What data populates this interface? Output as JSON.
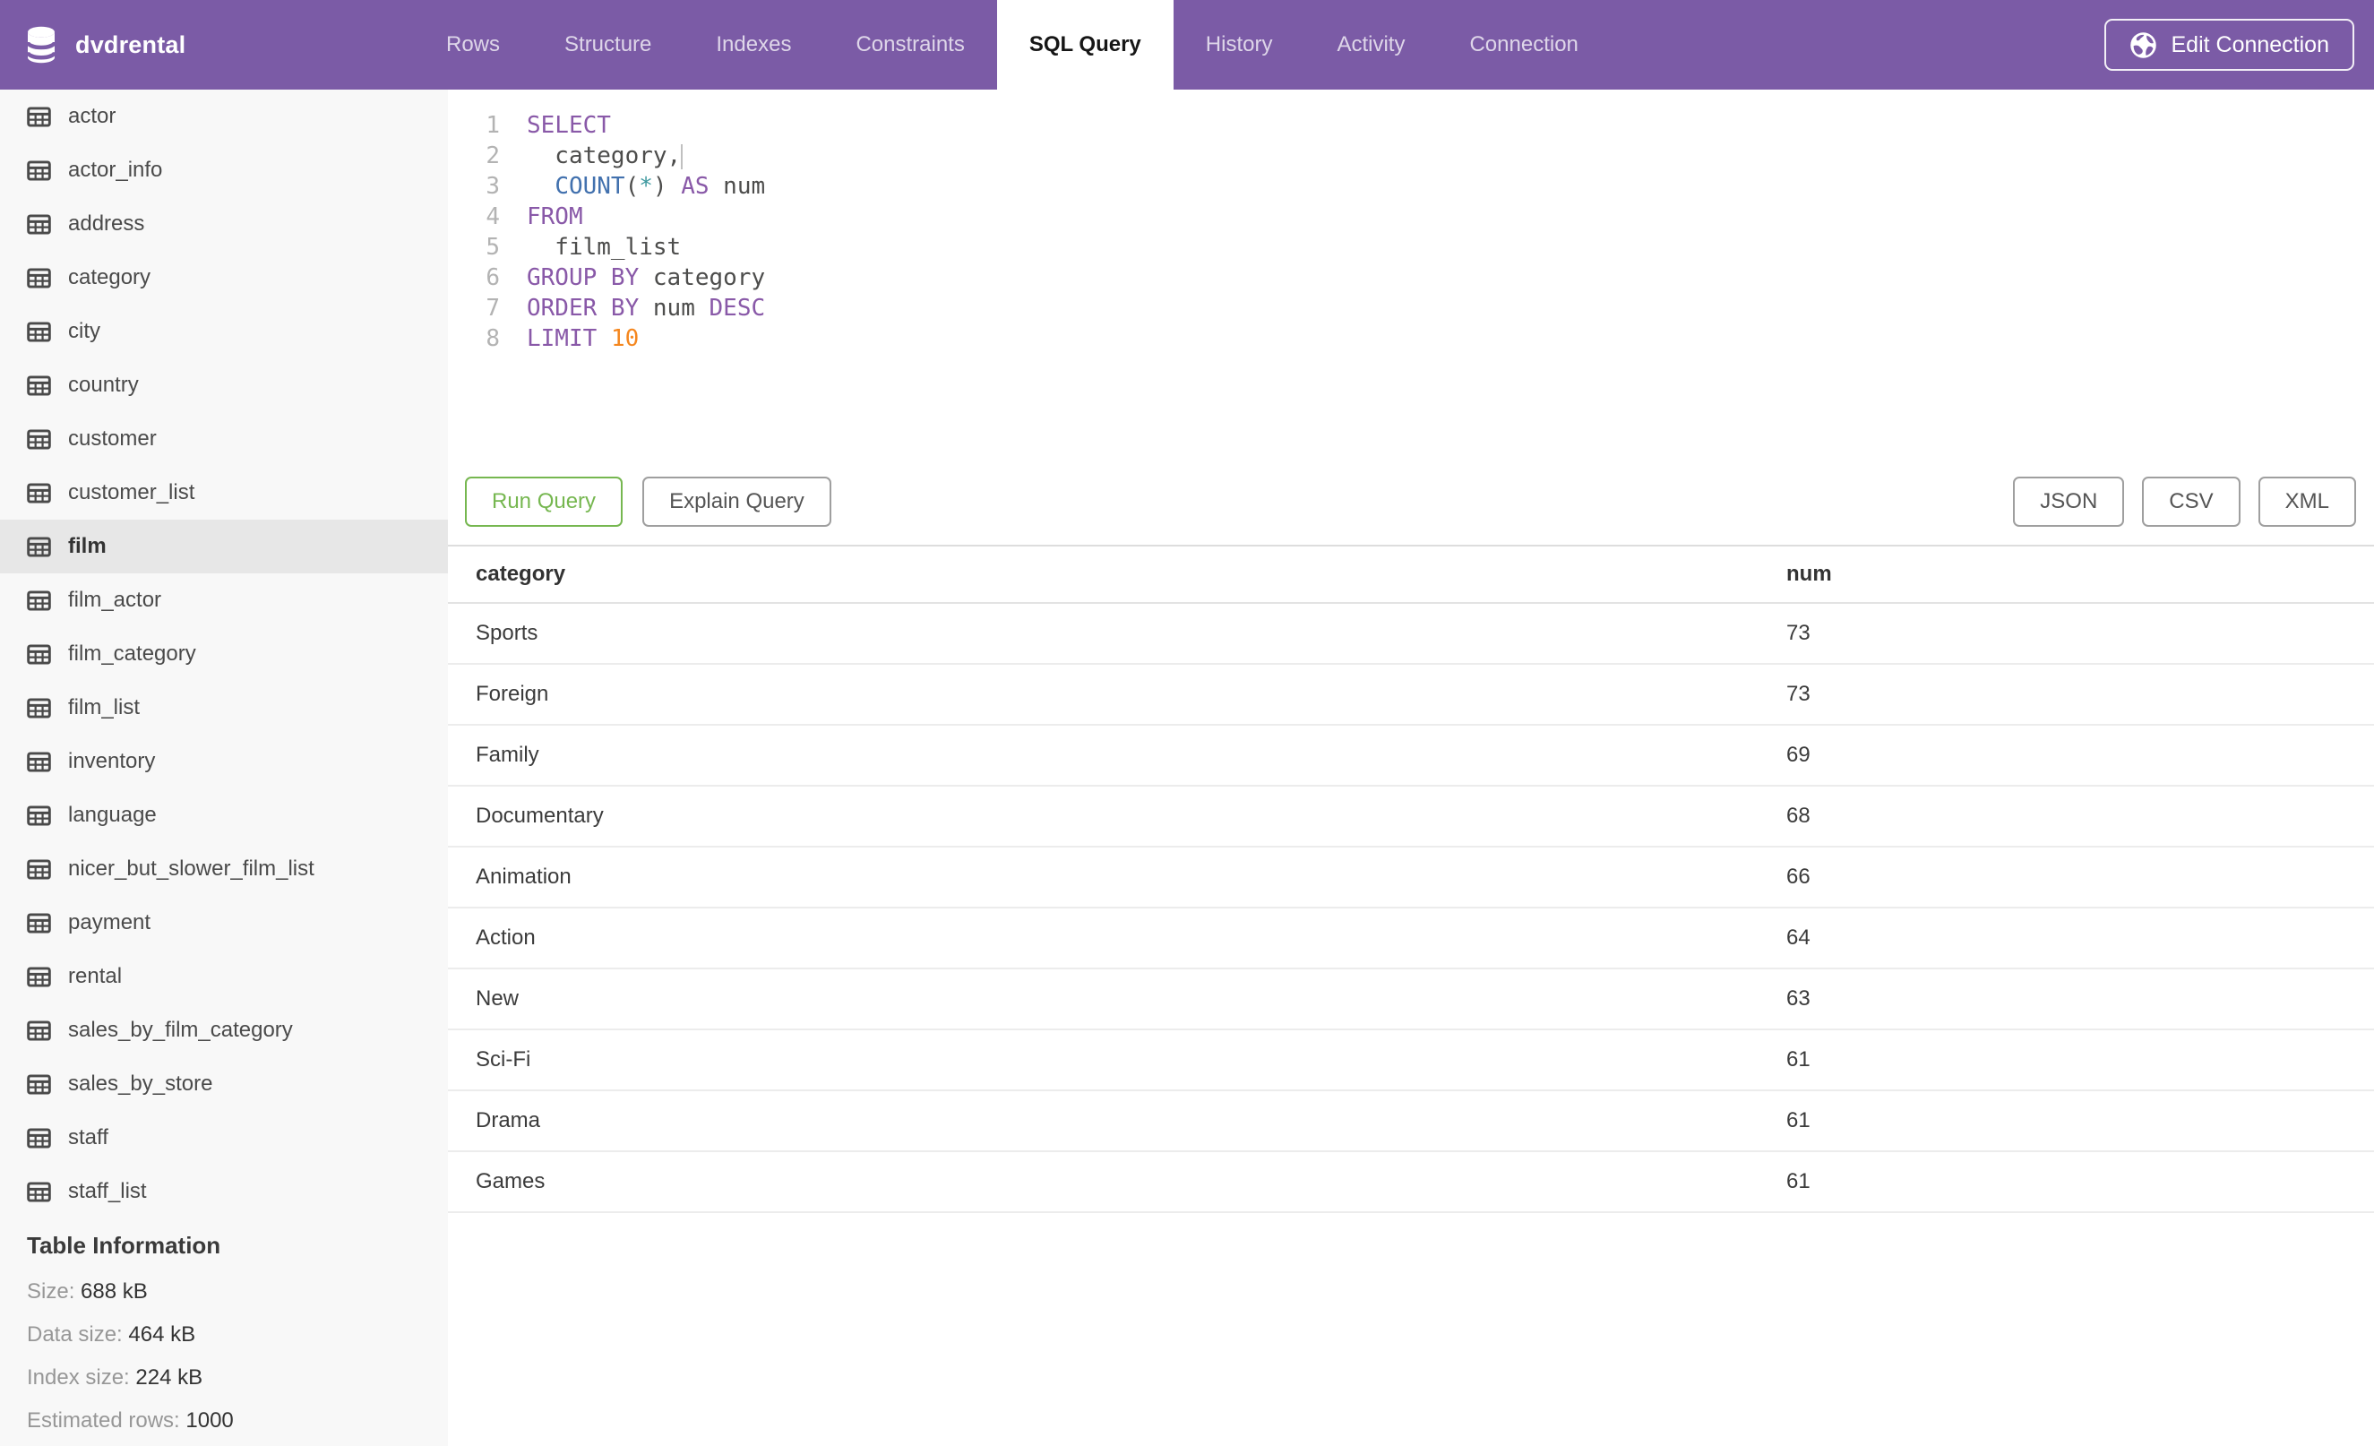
{
  "header": {
    "db_name": "dvdrental",
    "tabs": [
      {
        "label": "Rows",
        "active": false
      },
      {
        "label": "Structure",
        "active": false
      },
      {
        "label": "Indexes",
        "active": false
      },
      {
        "label": "Constraints",
        "active": false
      },
      {
        "label": "SQL Query",
        "active": true
      },
      {
        "label": "History",
        "active": false
      },
      {
        "label": "Activity",
        "active": false
      },
      {
        "label": "Connection",
        "active": false
      }
    ],
    "edit_connection_label": "Edit Connection"
  },
  "sidebar": {
    "tables": [
      "actor",
      "actor_info",
      "address",
      "category",
      "city",
      "country",
      "customer",
      "customer_list",
      "film",
      "film_actor",
      "film_category",
      "film_list",
      "inventory",
      "language",
      "nicer_but_slower_film_list",
      "payment",
      "rental",
      "sales_by_film_category",
      "sales_by_store",
      "staff",
      "staff_list"
    ],
    "selected_table": "film",
    "table_information": {
      "heading": "Table Information",
      "rows": [
        {
          "label": "Size:",
          "value": "688 kB"
        },
        {
          "label": "Data size:",
          "value": "464 kB"
        },
        {
          "label": "Index size:",
          "value": "224 kB"
        },
        {
          "label": "Estimated rows:",
          "value": "1000"
        }
      ]
    }
  },
  "editor": {
    "lines": [
      {
        "number": 1,
        "tokens": [
          [
            "kw",
            "SELECT"
          ]
        ]
      },
      {
        "number": 2,
        "tokens": [
          [
            "txt",
            "  category,"
          ],
          [
            "cursor",
            ""
          ]
        ]
      },
      {
        "number": 3,
        "tokens": [
          [
            "txt",
            "  "
          ],
          [
            "fn",
            "COUNT"
          ],
          [
            "txt",
            "("
          ],
          [
            "op",
            "*"
          ],
          [
            "txt",
            ") "
          ],
          [
            "kw",
            "AS"
          ],
          [
            "txt",
            " num"
          ]
        ]
      },
      {
        "number": 4,
        "tokens": [
          [
            "kw",
            "FROM"
          ]
        ]
      },
      {
        "number": 5,
        "tokens": [
          [
            "txt",
            "  film_list"
          ]
        ]
      },
      {
        "number": 6,
        "tokens": [
          [
            "kw",
            "GROUP BY"
          ],
          [
            "txt",
            " category"
          ]
        ]
      },
      {
        "number": 7,
        "tokens": [
          [
            "kw",
            "ORDER BY"
          ],
          [
            "txt",
            " num "
          ],
          [
            "kw",
            "DESC"
          ]
        ]
      },
      {
        "number": 8,
        "tokens": [
          [
            "kw",
            "LIMIT"
          ],
          [
            "txt",
            " "
          ],
          [
            "num",
            "10"
          ]
        ]
      }
    ]
  },
  "actions": {
    "run_query": "Run Query",
    "explain_query": "Explain Query",
    "export_buttons": [
      "JSON",
      "CSV",
      "XML"
    ]
  },
  "results": {
    "columns": [
      "category",
      "num"
    ],
    "rows": [
      [
        "Sports",
        "73"
      ],
      [
        "Foreign",
        "73"
      ],
      [
        "Family",
        "69"
      ],
      [
        "Documentary",
        "68"
      ],
      [
        "Animation",
        "66"
      ],
      [
        "Action",
        "64"
      ],
      [
        "New",
        "63"
      ],
      [
        "Sci-Fi",
        "61"
      ],
      [
        "Drama",
        "61"
      ],
      [
        "Games",
        "61"
      ]
    ]
  },
  "colors": {
    "header_purple": "#7b5ba6",
    "run_green": "#76b750",
    "keyword_purple": "#8959a8",
    "function_blue": "#4271ae",
    "operator_teal": "#3e999f",
    "number_orange": "#f5871f",
    "selected_item_bg": "#e7e7e7",
    "sidebar_bg": "#f8f8f8"
  },
  "icons": {
    "brand": "database-icon",
    "sidebar_item": "table-icon",
    "edit_connection": "globe-icon"
  }
}
